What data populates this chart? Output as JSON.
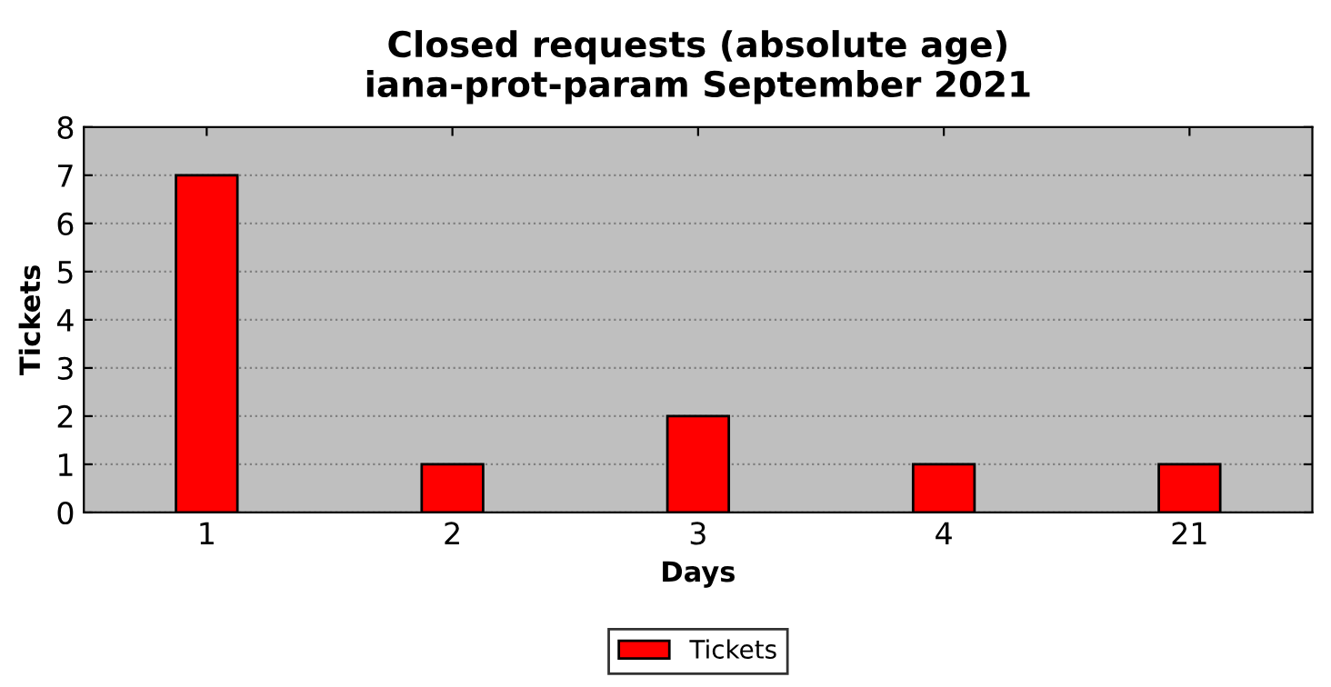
{
  "chart_data": {
    "type": "bar",
    "title": "Closed requests (absolute age)\niana-prot-param September 2021",
    "xlabel": "Days",
    "ylabel": "Tickets",
    "categories": [
      "1",
      "2",
      "3",
      "4",
      "21"
    ],
    "series": [
      {
        "name": "Tickets",
        "color": "#ff0000",
        "values": [
          7,
          1,
          2,
          1,
          1
        ]
      }
    ],
    "ylim": [
      0,
      8
    ],
    "yticks": [
      0,
      1,
      2,
      3,
      4,
      5,
      6,
      7,
      8
    ],
    "grid": "y",
    "line_style": "dotted",
    "legend": "bottom"
  }
}
